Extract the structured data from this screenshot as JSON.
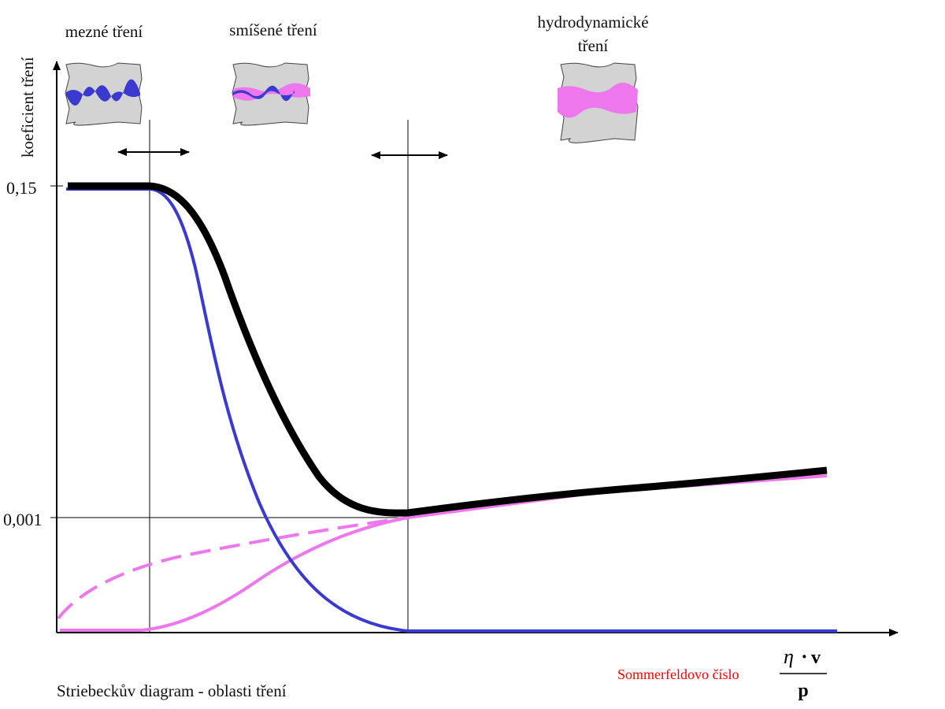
{
  "ylabel": "koeficient tření",
  "regions": {
    "boundary": "mezné tření",
    "mixed": "smíšené tření",
    "hydrodynamic_line1": "hydrodynamické",
    "hydrodynamic_line2": "tření"
  },
  "y_ticks": [
    "0,15",
    "0,001"
  ],
  "caption": "Striebeckův diagram - oblasti tření",
  "sommerfeld": {
    "label": "Sommerfeldovo číslo",
    "numerator_symbol": "η",
    "numerator_dot": "·",
    "numerator_var": "v",
    "denominator": "p"
  },
  "colors": {
    "total": "#000000",
    "boundary": "#3a3ad0",
    "fluid": "#ee77ee",
    "sommerfeld_label": "#ff0000",
    "surface": "#d3d3d3"
  }
}
